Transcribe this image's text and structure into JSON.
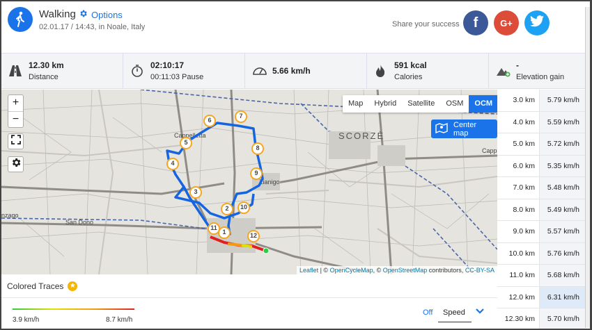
{
  "header": {
    "title": "Walking",
    "options_label": "Options",
    "subtitle": "02.01.17 / 14:43, in Noale, Italy",
    "share_text": "Share your success",
    "share_buttons": [
      {
        "name": "facebook",
        "glyph": "f"
      },
      {
        "name": "google-plus",
        "glyph": "G+"
      },
      {
        "name": "twitter",
        "glyph": "t"
      }
    ]
  },
  "stats": {
    "distance": {
      "value": "12.30 km",
      "label": "Distance",
      "icon": "road-icon"
    },
    "time": {
      "value": "02:10:17",
      "label": "00:11:03 Pause",
      "icon": "stopwatch-icon"
    },
    "speed": {
      "value": "5.66 km/h",
      "icon": "speedometer-icon"
    },
    "calories": {
      "value": "591 kcal",
      "label": "Calories",
      "icon": "flame-icon"
    },
    "elevation": {
      "value": "-",
      "label": "Elevation gain",
      "icon": "mountain-icon"
    }
  },
  "map": {
    "layers": [
      "Map",
      "Hybrid",
      "Satellite",
      "OSM",
      "OCM"
    ],
    "active_layer": "OCM",
    "center_label": "Center map",
    "zoom_in": "+",
    "zoom_out": "−",
    "place_labels": [
      "SCORZÈ",
      "Cappelletta",
      "Rio San Martino",
      "San Dono",
      "Zianigo",
      "Cappe"
    ],
    "markers": [
      "1",
      "2",
      "3",
      "4",
      "5",
      "6",
      "7",
      "8",
      "9",
      "10",
      "11",
      "12"
    ],
    "attribution": {
      "leaflet": "Leaflet",
      "sep1": " | © ",
      "ocm": "OpenCycleMap",
      "sep2": ", © ",
      "osm": "OpenStreetMap",
      "contrib": " contributors, ",
      "license": "CC-BY-SA"
    }
  },
  "traces": {
    "title": "Colored Traces",
    "min_label": "3.9 km/h",
    "max_label": "8.7 km/h",
    "toggle": "Off",
    "metric": "Speed"
  },
  "splits": [
    {
      "km": "3.0 km",
      "speed": "5.79 km/h"
    },
    {
      "km": "4.0 km",
      "speed": "5.59 km/h"
    },
    {
      "km": "5.0 km",
      "speed": "5.72 km/h"
    },
    {
      "km": "6.0 km",
      "speed": "5.35 km/h"
    },
    {
      "km": "7.0 km",
      "speed": "5.48 km/h"
    },
    {
      "km": "8.0 km",
      "speed": "5.49 km/h"
    },
    {
      "km": "9.0 km",
      "speed": "5.57 km/h"
    },
    {
      "km": "10.0 km",
      "speed": "5.76 km/h"
    },
    {
      "km": "11.0 km",
      "speed": "5.68 km/h"
    },
    {
      "km": "12.0 km",
      "speed": "6.31 km/h"
    },
    {
      "km": "12.30 km",
      "speed": "5.70 km/h"
    }
  ],
  "colors": {
    "accent": "#1a73e8",
    "route": "#1565e0",
    "marker": "#f5a623"
  }
}
